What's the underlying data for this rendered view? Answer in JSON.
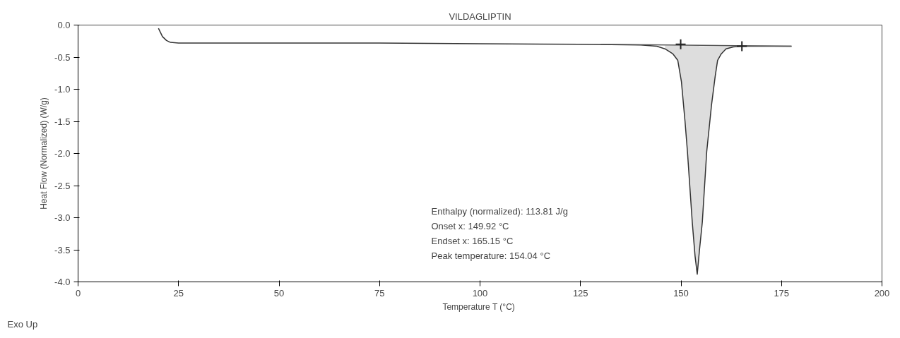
{
  "chart_data": {
    "type": "line",
    "title": "VILDAGLIPTIN",
    "xlabel": "Temperature  T (°C)",
    "ylabel": "Heat Flow (Normalized) (W/g)",
    "xlim": [
      0,
      200
    ],
    "xticks": [
      0,
      25,
      50,
      75,
      100,
      125,
      150,
      175,
      200
    ],
    "ylim": [
      -4.0,
      0.0
    ],
    "yticks": [
      {
        "value": 0,
        "label": "0.0"
      },
      {
        "value": -0.5,
        "label": "-0.5"
      },
      {
        "value": -1,
        "label": "-1.0"
      },
      {
        "value": -1.5,
        "label": "-1.5"
      },
      {
        "value": -2,
        "label": "-2.0"
      },
      {
        "value": -2.5,
        "label": "-2.5"
      },
      {
        "value": -3,
        "label": "-3.0"
      },
      {
        "value": -3.5,
        "label": "-3.5"
      },
      {
        "value": -4,
        "label": "-4.0"
      }
    ],
    "grid": false,
    "line_style": "solid",
    "series": [
      {
        "color": "#333333",
        "x": [
          20,
          21,
          22,
          23,
          25,
          50,
          75,
          100,
          125,
          140,
          144,
          146,
          148,
          149.2,
          150.1,
          151,
          151.6,
          152.8,
          153.5,
          154.04,
          154.6,
          155.3,
          156.4,
          157.6,
          158.5,
          159.1,
          160,
          161.2,
          163,
          165,
          170,
          177.5
        ],
        "values": [
          -0.05,
          -0.18,
          -0.24,
          -0.27,
          -0.28,
          -0.28,
          -0.28,
          -0.29,
          -0.3,
          -0.31,
          -0.33,
          -0.37,
          -0.45,
          -0.55,
          -0.88,
          -1.5,
          -1.97,
          -3.07,
          -3.6,
          -3.88,
          -3.5,
          -3.07,
          -1.97,
          -1.24,
          -0.8,
          -0.55,
          -0.45,
          -0.37,
          -0.34,
          -0.33,
          -0.33,
          -0.33
        ],
        "lower": [
          null,
          null,
          null,
          null,
          null,
          null,
          null,
          null,
          null,
          null,
          null,
          -0.37,
          -0.45,
          -0.55,
          -0.88,
          -1.5,
          -1.97,
          -3.07,
          -3.6,
          -3.88,
          -3.5,
          -3.07,
          -1.97,
          -1.24,
          -0.8,
          -0.55,
          -0.45,
          -0.37,
          -0.34,
          null,
          null,
          null
        ],
        "upper": [
          null,
          null,
          null,
          null,
          null,
          null,
          null,
          null,
          null,
          null,
          null,
          -0.32,
          -0.32,
          -0.32,
          -0.32,
          -0.32,
          -0.32,
          -0.32,
          -0.32,
          -0.32,
          -0.33,
          -0.33,
          -0.33,
          -0.33,
          -0.33,
          -0.33,
          -0.33,
          -0.33,
          -0.33,
          null,
          null,
          null
        ]
      },
      {
        "type": "line",
        "color": "#555555",
        "x": [
          130,
          177.5
        ],
        "values": [
          -0.3,
          -0.33
        ]
      },
      {
        "type": "scatter",
        "color": "#222222",
        "marker": "cross",
        "x": [
          149.92,
          165.15
        ],
        "values": [
          -0.3,
          -0.33
        ]
      }
    ],
    "annotations": [
      "Enthalpy (normalized): 113.81 J/g",
      "Onset x: 149.92 °C",
      "Endset x: 165.15 °C",
      "Peak temperature: 154.04 °C",
      "Exo Up"
    ]
  }
}
